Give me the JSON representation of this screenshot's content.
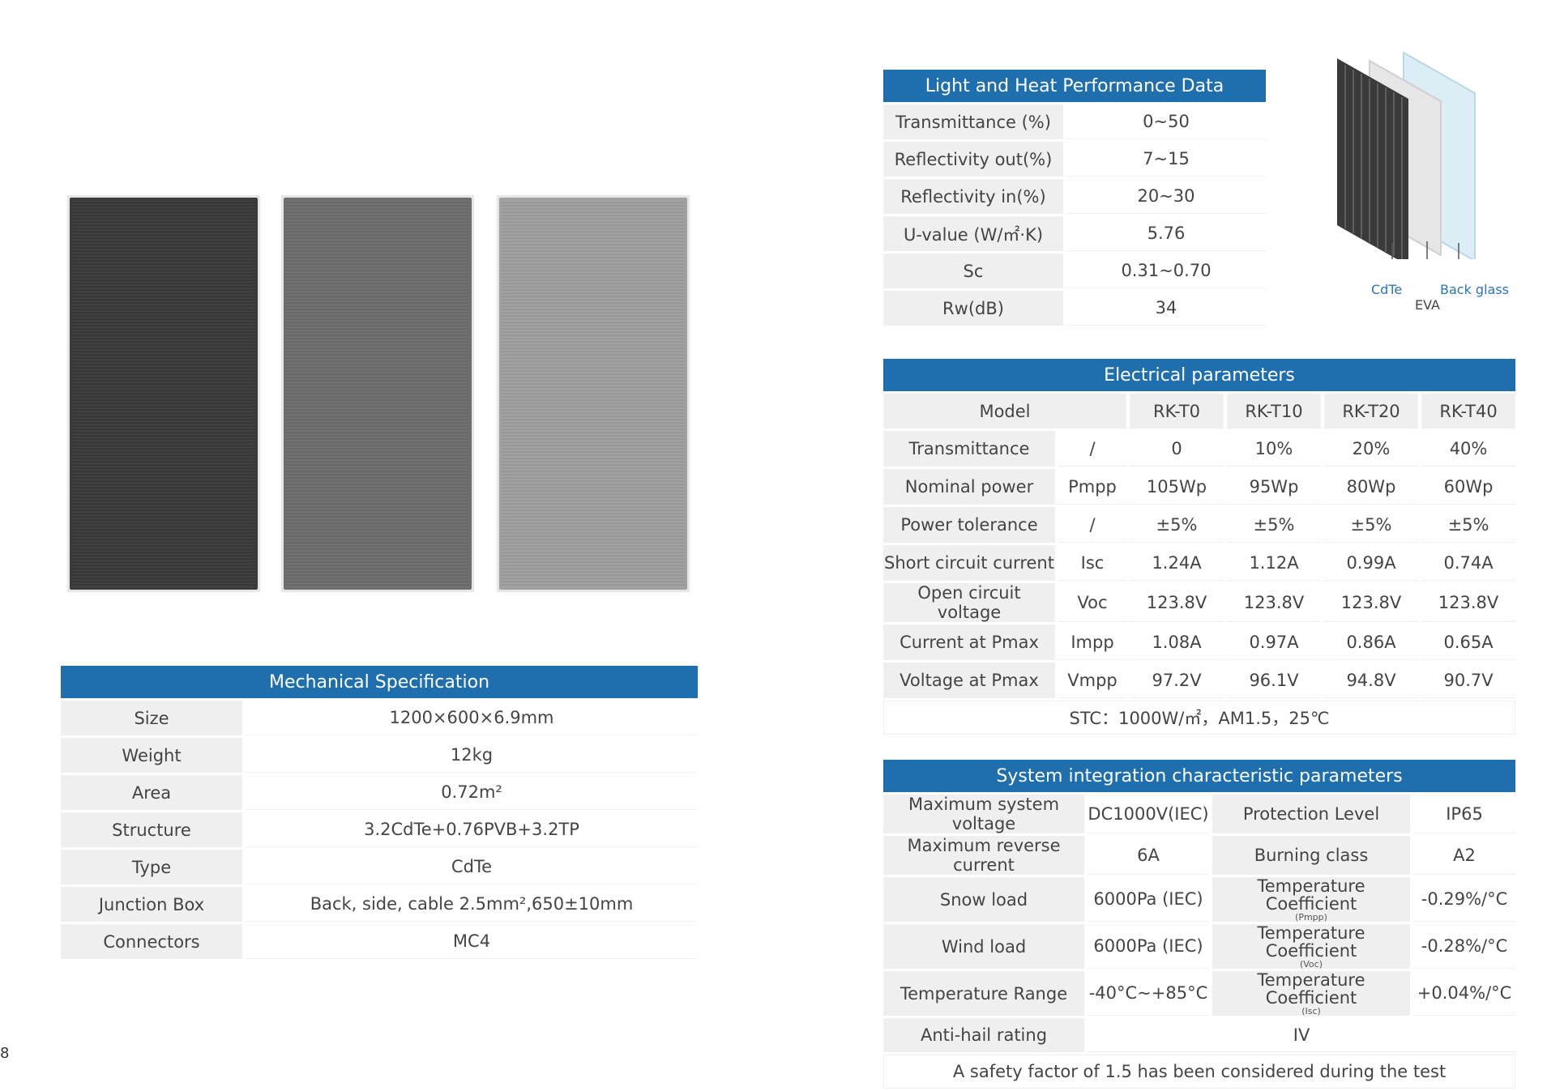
{
  "diagram": {
    "labels": {
      "cdte": "CdTe",
      "eva": "EVA",
      "back_glass": "Back glass"
    }
  },
  "mechanical": {
    "title": "Mechanical Specification",
    "rows": [
      {
        "label": "Size",
        "value": "1200×600×6.9mm"
      },
      {
        "label": "Weight",
        "value": "12kg"
      },
      {
        "label": "Area",
        "value": "0.72m²"
      },
      {
        "label": "Structure",
        "value": "3.2CdTe+0.76PVB+3.2TP"
      },
      {
        "label": "Type",
        "value": "CdTe"
      },
      {
        "label": "Junction Box",
        "value": "Back, side, cable 2.5mm²,650±10mm"
      },
      {
        "label": "Connectors",
        "value": "MC4"
      }
    ]
  },
  "light_heat": {
    "title": "Light and Heat Performance Data",
    "rows": [
      {
        "label": "Transmittance (%)",
        "value": "0~50"
      },
      {
        "label": "Reflectivity out(%)",
        "value": "7~15"
      },
      {
        "label": "Reflectivity in(%)",
        "value": "20~30"
      },
      {
        "label": "U-value (W/㎡·K)",
        "value": "5.76"
      },
      {
        "label": "Sc",
        "value": "0.31~0.70"
      },
      {
        "label": "Rw(dB)",
        "value": "34"
      }
    ]
  },
  "electrical": {
    "title": "Electrical parameters",
    "model_label": "Model",
    "models": [
      "RK-T0",
      "RK-T10",
      "RK-T20",
      "RK-T40"
    ],
    "rows": [
      {
        "label": "Transmittance",
        "unit": "/",
        "values": [
          "0",
          "10%",
          "20%",
          "40%"
        ]
      },
      {
        "label": "Nominal power",
        "unit": "Pmpp",
        "values": [
          "105Wp",
          "95Wp",
          "80Wp",
          "60Wp"
        ]
      },
      {
        "label": "Power tolerance",
        "unit": "/",
        "values": [
          "±5%",
          "±5%",
          "±5%",
          "±5%"
        ]
      },
      {
        "label": "Short circuit current",
        "unit": "Isc",
        "values": [
          "1.24A",
          "1.12A",
          "0.99A",
          "0.74A"
        ]
      },
      {
        "label": "Open circuit voltage",
        "unit": "Voc",
        "values": [
          "123.8V",
          "123.8V",
          "123.8V",
          "123.8V"
        ]
      },
      {
        "label": "Current at Pmax",
        "unit": "Impp",
        "values": [
          "1.08A",
          "0.97A",
          "0.86A",
          "0.65A"
        ]
      },
      {
        "label": "Voltage at Pmax",
        "unit": "Vmpp",
        "values": [
          "97.2V",
          "96.1V",
          "94.8V",
          "90.7V"
        ]
      }
    ],
    "note": "STC：1000W/㎡，AM1.5，25℃"
  },
  "system": {
    "title": "System integration characteristic parameters",
    "rows": [
      {
        "label": "Maximum system voltage",
        "value": "DC1000V(IEC)",
        "label2": "Protection Level",
        "sub2": "",
        "value2": "IP65"
      },
      {
        "label": "Maximum reverse current",
        "value": "6A",
        "label2": "Burning class",
        "sub2": "",
        "value2": "A2"
      },
      {
        "label": "Snow load",
        "value": "6000Pa (IEC)",
        "label2": "Temperature Coefficient",
        "sub2": "(Pmpp)",
        "value2": "-0.29%/°C"
      },
      {
        "label": "Wind load",
        "value": "6000Pa (IEC)",
        "label2": "Temperature Coefficient",
        "sub2": "(Voc)",
        "value2": "-0.28%/°C"
      },
      {
        "label": "Temperature Range",
        "value": "-40°C~+85°C",
        "label2": "Temperature Coefficient",
        "sub2": "(Isc)",
        "value2": "+0.04%/°C"
      }
    ],
    "hail_label": "Anti-hail rating",
    "hail_value": "IV",
    "note": "A safety factor of 1.5 has been considered during the test"
  },
  "page_number": "8"
}
